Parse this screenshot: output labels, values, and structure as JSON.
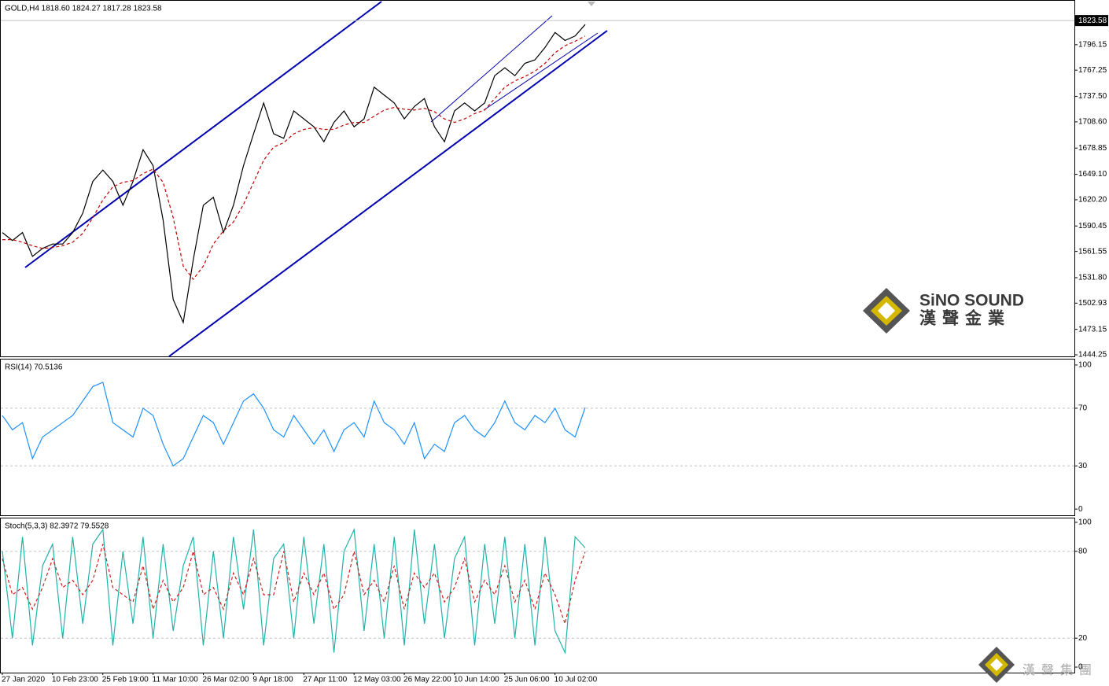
{
  "chart_data": [
    {
      "type": "line",
      "title": "GOLD,H4 1818.60 1824.27 1817.28 1823.58",
      "ylim": [
        1442.5,
        1846
      ],
      "yticks": [
        {
          "value": 1444.25,
          "label": "1444.25"
        },
        {
          "value": 1473.15,
          "label": "1473.15"
        },
        {
          "value": 1502.93,
          "label": "1502.93"
        },
        {
          "value": 1531.8,
          "label": "1531.80"
        },
        {
          "value": 1561.55,
          "label": "1561.55"
        },
        {
          "value": 1590.45,
          "label": "1590.45"
        },
        {
          "value": 1620.2,
          "label": "1620.20"
        },
        {
          "value": 1649.1,
          "label": "1649.10"
        },
        {
          "value": 1678.85,
          "label": "1678.85"
        },
        {
          "value": 1708.6,
          "label": "1708.60"
        },
        {
          "value": 1737.5,
          "label": "1737.50"
        },
        {
          "value": 1767.25,
          "label": "1767.25"
        },
        {
          "value": 1796.15,
          "label": "1796.15"
        }
      ],
      "last_price": 1823.58,
      "grid": false,
      "series": [
        {
          "color": "#000000",
          "values": [
            1583,
            1574,
            1583,
            1556,
            1565,
            1570,
            1570,
            1583,
            1605,
            1641,
            1654,
            1641,
            1614,
            1641,
            1677,
            1659,
            1597,
            1507,
            1481,
            1552,
            1614,
            1623,
            1583,
            1614,
            1659,
            1695,
            1730,
            1695,
            1690,
            1721,
            1712,
            1703,
            1686,
            1708,
            1721,
            1703,
            1712,
            1748,
            1739,
            1730,
            1712,
            1726,
            1735,
            1703,
            1686,
            1721,
            1730,
            1721,
            1730,
            1761,
            1770,
            1761,
            1775,
            1779,
            1793,
            1810,
            1801,
            1806,
            1819
          ]
        },
        {
          "color": "#c00000",
          "dashed": true,
          "values": [
            1575,
            1575,
            1572,
            1568,
            1565,
            1566,
            1568,
            1572,
            1582,
            1600,
            1620,
            1635,
            1640,
            1642,
            1650,
            1655,
            1640,
            1600,
            1545,
            1530,
            1545,
            1570,
            1585,
            1595,
            1615,
            1640,
            1665,
            1680,
            1685,
            1695,
            1700,
            1702,
            1700,
            1700,
            1705,
            1708,
            1708,
            1715,
            1722,
            1725,
            1723,
            1722,
            1724,
            1720,
            1712,
            1708,
            1712,
            1718,
            1722,
            1735,
            1748,
            1755,
            1760,
            1766,
            1775,
            1787,
            1795,
            1800,
            1806
          ]
        }
      ]
    },
    {
      "type": "line",
      "title": "RSI(14) 70.5136",
      "ylim": [
        -4.3,
        103.8
      ],
      "yticks": [
        0,
        30,
        70,
        100
      ],
      "grid": true,
      "grid_values": [
        30,
        70
      ],
      "series": [
        {
          "color": "#1e90ff",
          "values": [
            65,
            55,
            60,
            35,
            50,
            55,
            60,
            65,
            75,
            85,
            88,
            60,
            55,
            50,
            70,
            65,
            45,
            30,
            35,
            50,
            65,
            60,
            45,
            60,
            75,
            80,
            70,
            55,
            50,
            65,
            55,
            45,
            55,
            40,
            55,
            60,
            50,
            75,
            60,
            55,
            45,
            60,
            35,
            45,
            40,
            60,
            65,
            55,
            50,
            60,
            75,
            60,
            55,
            65,
            60,
            70,
            55,
            50,
            70.5
          ]
        }
      ]
    },
    {
      "type": "line",
      "title": "Stoch(5,3,3) 82.3972 79.5528",
      "ylim": [
        -3.8,
        102.7
      ],
      "yticks": [
        0,
        20,
        80,
        100
      ],
      "grid": true,
      "grid_values": [
        20,
        80
      ],
      "categories": [
        "27 Jan 2020",
        null,
        null,
        null,
        null,
        "10 Feb 23:00",
        null,
        null,
        null,
        null,
        "25 Feb 19:00",
        null,
        null,
        null,
        null,
        "11 Mar 10:00",
        null,
        null,
        null,
        null,
        "26 Mar 02:00",
        null,
        null,
        null,
        null,
        "9 Apr 18:00",
        null,
        null,
        null,
        null,
        "27 Apr 11:00",
        null,
        null,
        null,
        null,
        "12 May 03:00",
        null,
        null,
        null,
        null,
        "26 May 22:00",
        null,
        null,
        null,
        null,
        "10 Jun 14:00",
        null,
        null,
        null,
        null,
        "25 Jun 06:00",
        null,
        null,
        null,
        null,
        "10 Jul 02:00",
        null,
        null,
        null
      ],
      "series": [
        {
          "color": "#20b2aa",
          "values": [
            80,
            20,
            90,
            15,
            70,
            85,
            20,
            90,
            30,
            85,
            95,
            15,
            80,
            30,
            90,
            20,
            85,
            25,
            70,
            90,
            15,
            80,
            20,
            90,
            40,
            95,
            15,
            75,
            85,
            20,
            90,
            30,
            85,
            10,
            80,
            95,
            25,
            85,
            20,
            90,
            15,
            95,
            30,
            85,
            20,
            75,
            90,
            15,
            85,
            30,
            90,
            20,
            85,
            15,
            90,
            25,
            10,
            90,
            82.4
          ]
        },
        {
          "color": "#d02020",
          "dashed": true,
          "values": [
            75,
            50,
            55,
            40,
            55,
            75,
            55,
            60,
            50,
            60,
            85,
            55,
            50,
            45,
            70,
            40,
            60,
            45,
            55,
            80,
            50,
            55,
            40,
            65,
            50,
            75,
            50,
            50,
            80,
            45,
            65,
            50,
            65,
            40,
            50,
            80,
            50,
            60,
            45,
            70,
            40,
            65,
            55,
            65,
            45,
            55,
            75,
            45,
            60,
            50,
            70,
            45,
            60,
            40,
            65,
            50,
            30,
            60,
            79.6
          ]
        }
      ]
    }
  ],
  "watermark": {
    "brand": "SiNO SOUND",
    "chinese": "漢聲金業",
    "group": "漢聲集團"
  }
}
